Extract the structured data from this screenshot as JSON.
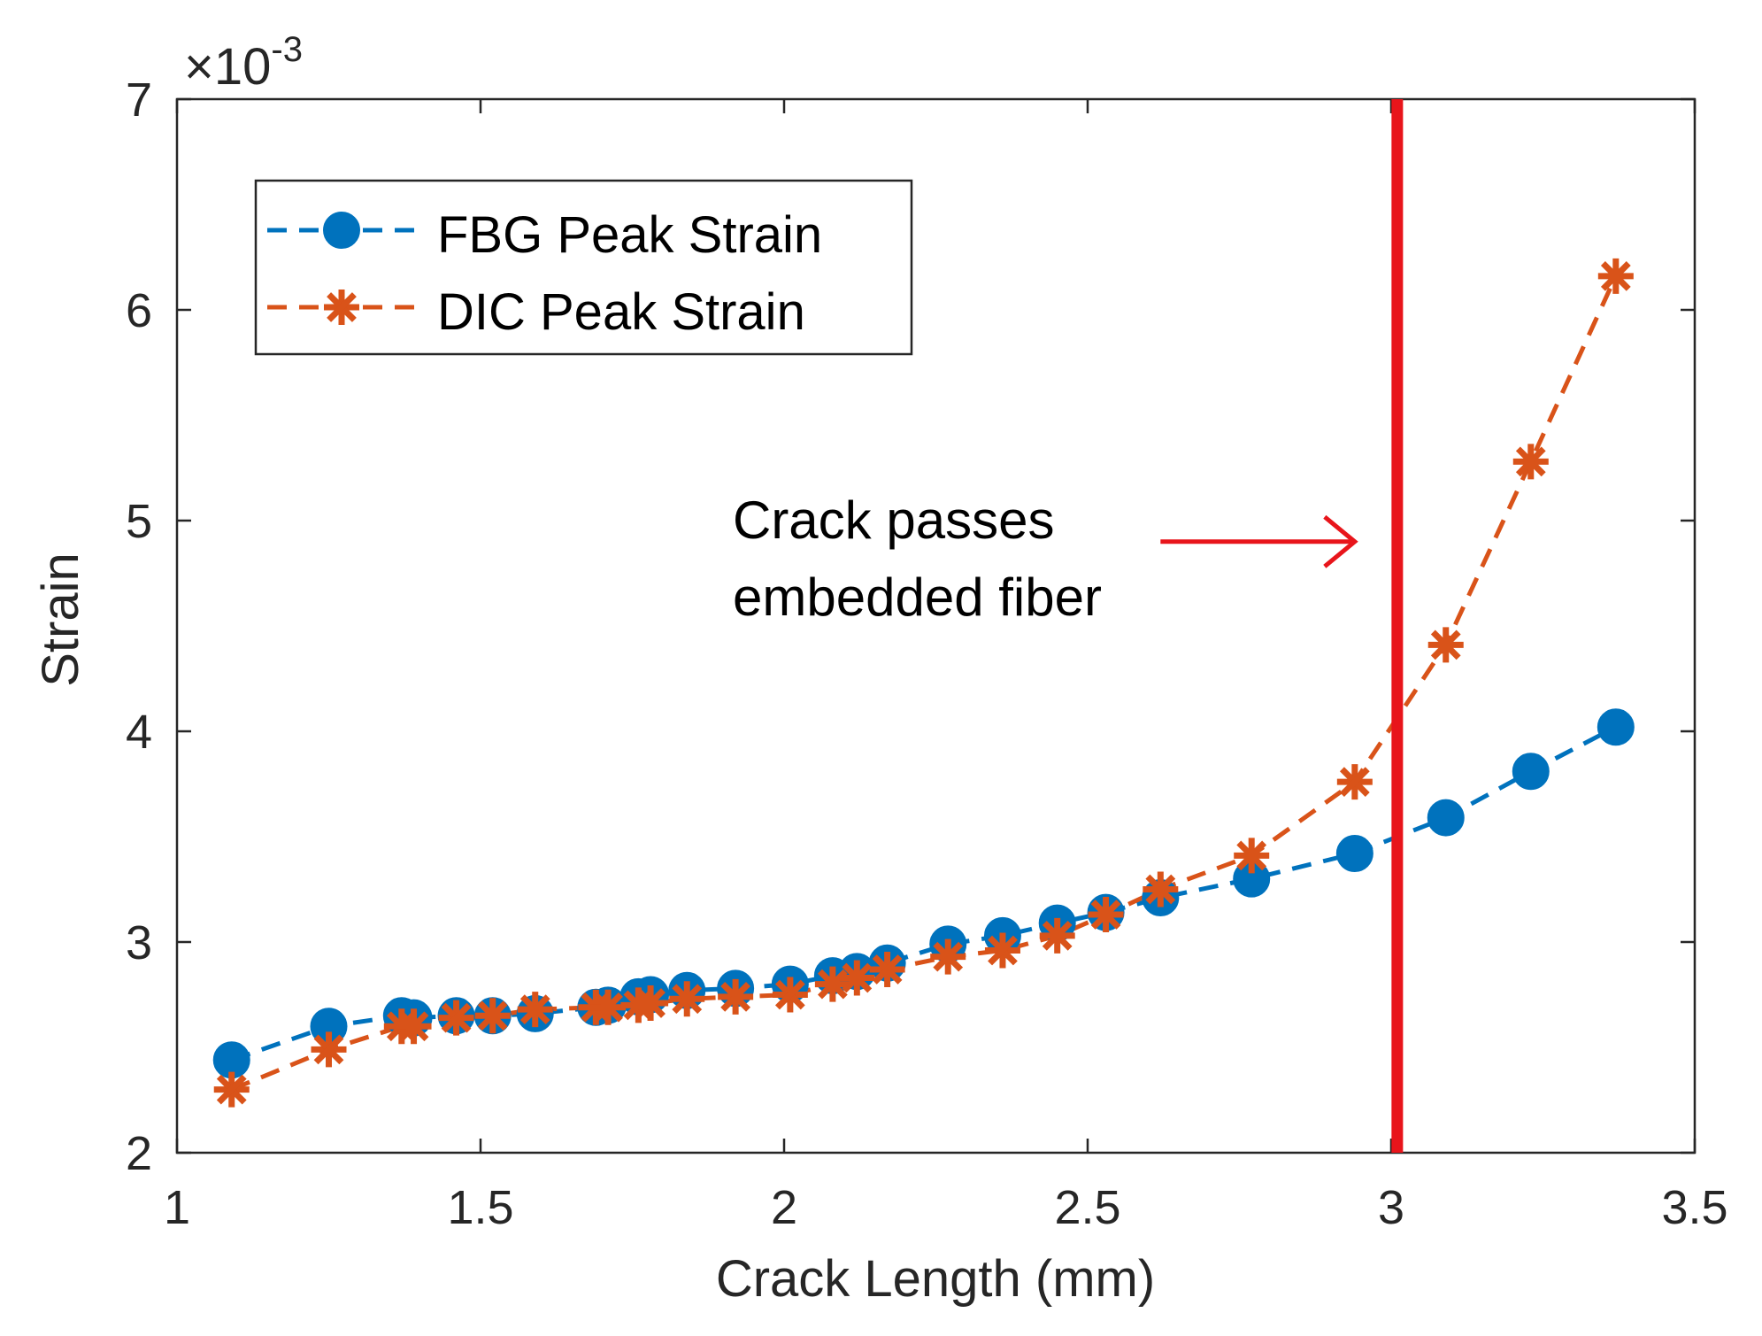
{
  "chart_data": {
    "type": "line",
    "title": "",
    "xlabel": "Crack Length (mm)",
    "ylabel": "Strain",
    "xlim": [
      1,
      3.5
    ],
    "ylim": [
      2,
      7
    ],
    "y_exponent_label": "×10",
    "y_exponent_power": "-3",
    "xticks": [
      1,
      1.5,
      2,
      2.5,
      3,
      3.5
    ],
    "xtick_labels": [
      "1",
      "1.5",
      "2",
      "2.5",
      "3",
      "3.5"
    ],
    "yticks": [
      2,
      3,
      4,
      5,
      6,
      7
    ],
    "ytick_labels": [
      "2",
      "3",
      "4",
      "5",
      "6",
      "7"
    ],
    "legend_position": "top-left",
    "series": [
      {
        "name": "FBG Peak Strain",
        "color": "#0072BD",
        "marker": "circle",
        "line": "dashed",
        "x": [
          1.09,
          1.25,
          1.37,
          1.39,
          1.46,
          1.52,
          1.59,
          1.69,
          1.71,
          1.76,
          1.78,
          1.84,
          1.92,
          2.01,
          2.08,
          2.12,
          2.17,
          2.27,
          2.36,
          2.45,
          2.53,
          2.62,
          2.77,
          2.94,
          3.09,
          3.23,
          3.37
        ],
        "y": [
          2.44,
          2.6,
          2.65,
          2.64,
          2.65,
          2.65,
          2.66,
          2.69,
          2.7,
          2.74,
          2.75,
          2.77,
          2.78,
          2.8,
          2.84,
          2.86,
          2.9,
          2.99,
          3.03,
          3.09,
          3.14,
          3.21,
          3.3,
          3.42,
          3.59,
          3.81,
          4.02
        ]
      },
      {
        "name": "DIC Peak Strain",
        "color": "#D95319",
        "marker": "asterisk",
        "line": "dashed",
        "x": [
          1.09,
          1.25,
          1.37,
          1.39,
          1.46,
          1.52,
          1.59,
          1.69,
          1.71,
          1.76,
          1.78,
          1.84,
          1.92,
          2.01,
          2.08,
          2.12,
          2.17,
          2.27,
          2.36,
          2.45,
          2.53,
          2.62,
          2.77,
          2.94,
          3.09,
          3.23,
          3.37
        ],
        "y": [
          2.3,
          2.49,
          2.6,
          2.6,
          2.64,
          2.65,
          2.68,
          2.69,
          2.69,
          2.7,
          2.71,
          2.73,
          2.74,
          2.75,
          2.8,
          2.83,
          2.87,
          2.93,
          2.96,
          3.03,
          3.13,
          3.25,
          3.41,
          3.76,
          4.41,
          5.28,
          6.16
        ]
      }
    ],
    "vertical_line": {
      "x": 3.01,
      "color": "#E8151B"
    },
    "annotation": {
      "lines": [
        "Crack passes",
        "embedded fiber"
      ],
      "arrow_color": "#E8151B",
      "arrow_x_start": 2.62,
      "arrow_x_end": 2.94,
      "arrow_y": 4.9
    }
  }
}
